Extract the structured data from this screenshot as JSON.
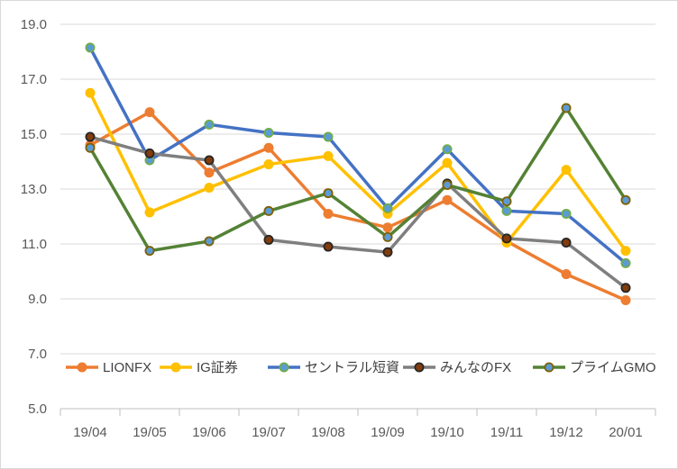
{
  "chart_data": {
    "type": "line",
    "categories": [
      "19/04",
      "19/05",
      "19/06",
      "19/07",
      "19/08",
      "19/09",
      "19/10",
      "19/11",
      "19/12",
      "20/01"
    ],
    "ylim": [
      5.0,
      19.0
    ],
    "yticks": [
      "5.0",
      "7.0",
      "9.0",
      "11.0",
      "13.0",
      "15.0",
      "17.0",
      "19.0"
    ],
    "grid": true,
    "legend_position": "bottom",
    "series": [
      {
        "name": "LIONFX",
        "color": "#ed7d31",
        "marker_fill": "#ed7d31",
        "marker_edge": "#ed7d31",
        "values": [
          14.6,
          15.8,
          13.6,
          14.5,
          12.1,
          11.6,
          12.6,
          11.1,
          9.9,
          8.95
        ]
      },
      {
        "name": "IG証券",
        "color": "#ffc000",
        "marker_fill": "#ffc000",
        "marker_edge": "#ffc000",
        "values": [
          16.5,
          12.15,
          13.05,
          13.9,
          14.2,
          12.1,
          13.95,
          11.05,
          13.7,
          10.75
        ]
      },
      {
        "name": "セントラル短資",
        "color": "#4472c4",
        "marker_fill": "#5b9bd5",
        "marker_edge": "#70ad47",
        "values": [
          18.15,
          14.05,
          15.35,
          15.05,
          14.9,
          12.3,
          14.45,
          12.2,
          12.1,
          10.3
        ]
      },
      {
        "name": "みんなのFX",
        "color": "#7f7f7f",
        "marker_fill": "#843c0c",
        "marker_edge": "#262626",
        "values": [
          14.9,
          14.3,
          14.05,
          11.15,
          10.9,
          10.7,
          13.2,
          11.2,
          11.05,
          9.4
        ]
      },
      {
        "name": "プライムGMO",
        "color": "#548235",
        "marker_fill": "#5b9bd5",
        "marker_edge": "#7f6000",
        "values": [
          14.5,
          10.75,
          11.1,
          12.2,
          12.85,
          11.25,
          13.15,
          12.55,
          15.95,
          12.6
        ]
      }
    ]
  }
}
